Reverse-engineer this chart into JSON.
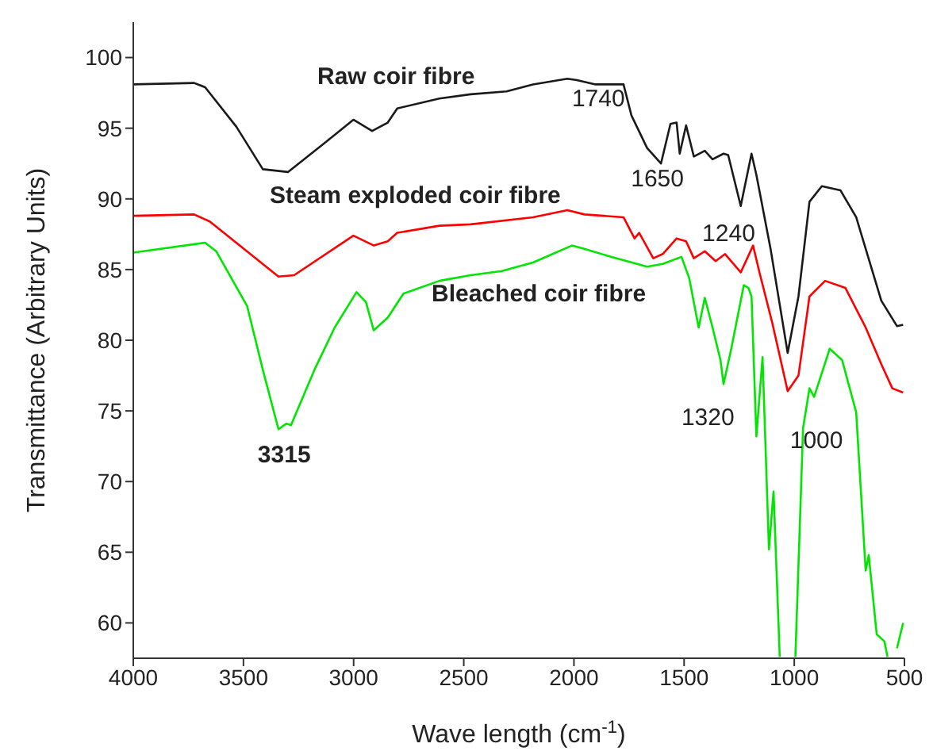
{
  "chart_data": {
    "type": "line",
    "xlabel": "Wave length (cm$^{-1}$)",
    "ylabel": "Transmittance (Arbitrary Units)",
    "xlim": [
      4000,
      500
    ],
    "ylim": [
      57.5,
      102.5
    ],
    "xticks": [
      4000,
      3500,
      3000,
      2500,
      2000,
      1500,
      1000,
      500
    ],
    "yticks": [
      60,
      65,
      70,
      75,
      80,
      85,
      90,
      95,
      100
    ],
    "grid": false,
    "legend": false,
    "marker": "none",
    "line_style": "solid",
    "series": [
      {
        "name": "Raw coir fibre",
        "color": "#1a1a1a",
        "x": [
          4000,
          3724,
          3674,
          3532,
          3412,
          3298,
          3128,
          3001,
          2916,
          2845,
          2802,
          2611,
          2469,
          2306,
          2186,
          2030,
          1987,
          1902,
          1775,
          1739,
          1668,
          1605,
          1562,
          1534,
          1520,
          1491,
          1456,
          1406,
          1371,
          1321,
          1300,
          1243,
          1194,
          1172,
          1108,
          1030,
          981,
          931,
          875,
          790,
          719,
          605,
          534,
          506
        ],
        "values": [
          98.1,
          98.2,
          97.9,
          95.1,
          92.1,
          91.9,
          94.0,
          95.6,
          94.8,
          95.4,
          96.4,
          97.1,
          97.4,
          97.6,
          98.1,
          98.5,
          98.4,
          98.1,
          98.1,
          95.9,
          93.6,
          92.5,
          95.3,
          95.4,
          93.2,
          95.2,
          93.0,
          93.4,
          92.8,
          93.2,
          93.1,
          89.5,
          93.2,
          91.7,
          86.5,
          79.1,
          83.1,
          89.8,
          90.9,
          90.6,
          88.7,
          82.8,
          81.0,
          81.1
        ]
      },
      {
        "name": "Steam exploded coir fibre",
        "color": "#ff0000",
        "x": [
          4000,
          3724,
          3653,
          3341,
          3270,
          3001,
          2908,
          2845,
          2802,
          2611,
          2469,
          2186,
          2030,
          1952,
          1775,
          1725,
          1704,
          1640,
          1597,
          1534,
          1491,
          1456,
          1406,
          1357,
          1314,
          1243,
          1187,
          1158,
          1101,
          1030,
          981,
          931,
          860,
          768,
          676,
          605,
          555,
          506
        ],
        "values": [
          88.8,
          88.9,
          88.4,
          84.5,
          84.6,
          87.4,
          86.7,
          87.0,
          87.6,
          88.1,
          88.2,
          88.7,
          89.2,
          88.9,
          88.7,
          87.2,
          87.6,
          85.8,
          86.1,
          87.2,
          87.0,
          85.8,
          86.3,
          85.6,
          86.1,
          84.8,
          86.7,
          84.8,
          81.3,
          76.4,
          77.5,
          83.1,
          84.2,
          83.7,
          80.9,
          78.3,
          76.6,
          76.3
        ]
      },
      {
        "name": "Bleached coir fibre",
        "color": "#00e600",
        "x": [
          4000,
          3674,
          3624,
          3483,
          3412,
          3341,
          3305,
          3284,
          3178,
          3086,
          2987,
          2944,
          2909,
          2845,
          2774,
          2611,
          2469,
          2327,
          2186,
          2009,
          1959,
          1832,
          1668,
          1597,
          1512,
          1477,
          1434,
          1406,
          1371,
          1335,
          1321,
          1286,
          1229,
          1208,
          1194,
          1172,
          1144,
          1115,
          1094,
          1066,
          1030,
          995,
          960,
          931,
          910,
          839,
          783,
          719,
          676,
          662,
          626,
          591,
          577,
          555,
          534,
          506
        ],
        "values": [
          86.2,
          86.9,
          86.3,
          82.4,
          77.9,
          73.7,
          74.1,
          74.0,
          77.9,
          80.9,
          83.4,
          82.7,
          80.7,
          81.6,
          83.3,
          84.2,
          84.6,
          84.9,
          85.5,
          86.7,
          86.5,
          85.9,
          85.2,
          85.4,
          85.9,
          84.4,
          80.9,
          83.0,
          80.9,
          78.6,
          76.9,
          79.4,
          83.9,
          83.7,
          83.1,
          73.2,
          78.8,
          65.2,
          69.3,
          57.6,
          null,
          57.6,
          73.8,
          76.6,
          76.0,
          79.4,
          78.6,
          74.9,
          63.7,
          64.8,
          59.2,
          58.7,
          57.6,
          null,
          58.2,
          60.0
        ]
      }
    ],
    "annotations": [
      {
        "text": "3315",
        "x": 3315,
        "y": 73.8
      },
      {
        "text": "1740",
        "x": 1740,
        "y": 95.9
      },
      {
        "text": "1650",
        "x": 1650,
        "y": 93.6
      },
      {
        "text": "1240",
        "x": 1240,
        "y": 89.5
      },
      {
        "text": "1320",
        "x": 1320,
        "y": 76.9
      },
      {
        "text": "1000",
        "x": 1000,
        "y": 76.4
      }
    ]
  }
}
